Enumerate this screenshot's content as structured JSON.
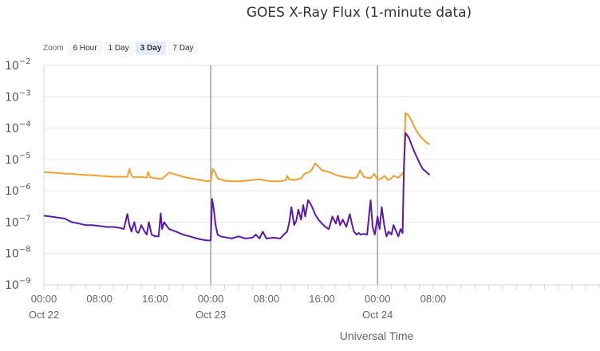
{
  "title": "GOES X-Ray Flux (1-minute data)",
  "zoom": {
    "label": "Zoom",
    "buttons": [
      {
        "label": "6 Hour",
        "active": false
      },
      {
        "label": "1 Day",
        "active": false
      },
      {
        "label": "3 Day",
        "active": true
      },
      {
        "label": "7 Day",
        "active": false
      }
    ]
  },
  "colors": {
    "long_channel": "#f0a030",
    "short_channel": "#5b1aa6",
    "grid": "#e6e6e6",
    "day_divider": "#a0a0a0",
    "axis": "#ccd6eb"
  },
  "chart_data": {
    "type": "line",
    "title": "GOES X-Ray Flux (1-minute data)",
    "xlabel": "Universal Time",
    "ylabel": "",
    "x_unit": "hours since Oct 22 00:00 UTC",
    "xlim": [
      0,
      80
    ],
    "ylim": [
      1e-09,
      0.01
    ],
    "y_scale": "log",
    "y_ticks": [
      {
        "value": 0.01,
        "base": "10",
        "exp": "−2"
      },
      {
        "value": 0.001,
        "base": "10",
        "exp": "−3"
      },
      {
        "value": 0.0001,
        "base": "10",
        "exp": "−4"
      },
      {
        "value": 1e-05,
        "base": "10",
        "exp": "−5"
      },
      {
        "value": 1e-06,
        "base": "10",
        "exp": "−6"
      },
      {
        "value": 1e-07,
        "base": "10",
        "exp": "−7"
      },
      {
        "value": 1e-08,
        "base": "10",
        "exp": "−8"
      },
      {
        "value": 1e-09,
        "base": "10",
        "exp": "−9"
      }
    ],
    "x_ticks": [
      {
        "value": 0,
        "label": "00:00",
        "sublabel": "Oct 22"
      },
      {
        "value": 8,
        "label": "08:00",
        "sublabel": ""
      },
      {
        "value": 16,
        "label": "16:00",
        "sublabel": ""
      },
      {
        "value": 24,
        "label": "00:00",
        "sublabel": "Oct 23"
      },
      {
        "value": 32,
        "label": "08:00",
        "sublabel": ""
      },
      {
        "value": 40,
        "label": "16:00",
        "sublabel": ""
      },
      {
        "value": 48,
        "label": "00:00",
        "sublabel": "Oct 24"
      },
      {
        "value": 56,
        "label": "08:00",
        "sublabel": ""
      }
    ],
    "day_dividers": [
      24,
      48
    ],
    "grid": true,
    "series": [
      {
        "name": "",
        "color": "#f0a030",
        "x": [
          0,
          1,
          2,
          3,
          4,
          5,
          6,
          7,
          8,
          9,
          10,
          11,
          12,
          12.3,
          12.6,
          13,
          14,
          14.8,
          15,
          15.3,
          16,
          17,
          18,
          19,
          20,
          21,
          22,
          23,
          23.5,
          24,
          24.3,
          24.6,
          25,
          26,
          27,
          28,
          29,
          30,
          31,
          32,
          33,
          34,
          34.8,
          35,
          35.3,
          36,
          37,
          37.5,
          38,
          38.5,
          39,
          39.5,
          40,
          41,
          42,
          42.5,
          43,
          44,
          44.5,
          45,
          45.5,
          46,
          46.5,
          47,
          47.5,
          48,
          48.5,
          49,
          49.5,
          50,
          50.3,
          51,
          51.5,
          51.8,
          52,
          52.5,
          53,
          53.5,
          54,
          54.5,
          55,
          55.5
        ],
        "y": [
          4e-06,
          3.8e-06,
          3.7e-06,
          3.5e-06,
          3.5e-06,
          3.3e-06,
          3.2e-06,
          3.1e-06,
          3e-06,
          2.9e-06,
          2.8e-06,
          2.8e-06,
          2.8e-06,
          5e-06,
          3e-06,
          2.7e-06,
          2.8e-06,
          2.6e-06,
          4e-06,
          2.7e-06,
          2.5e-06,
          2.4e-06,
          3.8e-06,
          3.3e-06,
          2.8e-06,
          2.5e-06,
          2.3e-06,
          2.1e-06,
          2e-06,
          2.1e-06,
          5e-06,
          4e-06,
          2.5e-06,
          2.1e-06,
          2e-06,
          2e-06,
          2.1e-06,
          2.2e-06,
          2.3e-06,
          2.1e-06,
          2e-06,
          2e-06,
          2.2e-06,
          3e-06,
          2.3e-06,
          2.2e-06,
          2.5e-06,
          3.5e-06,
          3.8e-06,
          4.5e-06,
          7.5e-06,
          6e-06,
          4.5e-06,
          4e-06,
          3.2e-06,
          3e-06,
          2.8e-06,
          2.6e-06,
          2.5e-06,
          2.7e-06,
          4.5e-06,
          2.8e-06,
          2.6e-06,
          2.5e-06,
          3.5e-06,
          2.3e-06,
          2.4e-06,
          3e-06,
          2.2e-06,
          2.5e-06,
          3e-06,
          2.6e-06,
          3.5e-06,
          4e-06,
          0.0003,
          0.00025,
          0.00015,
          9e-05,
          6e-05,
          4.5e-05,
          3.5e-05,
          3e-05
        ]
      },
      {
        "name": "",
        "color": "#5b1aa6",
        "x": [
          0,
          1,
          2,
          3,
          4,
          5,
          6,
          7,
          8,
          9,
          10,
          11,
          11.5,
          12,
          12.3,
          12.6,
          13,
          13.3,
          13.6,
          14,
          14.5,
          14.8,
          15.1,
          15.5,
          16,
          16.5,
          16.8,
          17,
          17.3,
          18,
          19,
          20,
          21,
          22,
          23,
          23.5,
          24,
          24.2,
          24.4,
          24.7,
          25,
          25.4,
          26,
          27,
          28,
          29,
          30,
          30.5,
          31,
          31.5,
          32,
          33,
          34,
          34.5,
          35,
          35.3,
          35.6,
          36,
          36.3,
          36.6,
          37,
          37.3,
          37.6,
          38,
          38.3,
          38.6,
          39,
          39.5,
          40,
          40.5,
          41,
          41.5,
          42,
          42.3,
          42.6,
          43,
          43.5,
          44,
          44.3,
          44.6,
          45,
          45.3,
          45.6,
          46,
          46.5,
          47,
          47.3,
          47.6,
          48,
          48.3,
          48.6,
          49,
          49.3,
          49.6,
          50,
          50.3,
          51,
          51.3,
          51.6,
          51.8,
          52,
          52.5,
          53,
          53.5,
          54,
          54.5,
          55,
          55.5
        ],
        "y": [
          1.6e-07,
          1.5e-07,
          1.4e-07,
          1.3e-07,
          1e-07,
          9e-08,
          8e-08,
          8e-08,
          7.5e-08,
          7e-08,
          7e-08,
          6.5e-08,
          6e-08,
          1.8e-07,
          8e-08,
          5e-08,
          1e-07,
          5e-08,
          4.5e-08,
          8e-08,
          5e-08,
          4e-08,
          1e-07,
          4e-08,
          3.5e-08,
          3.5e-08,
          1.9e-07,
          6e-08,
          1e-07,
          6e-08,
          5e-08,
          4e-08,
          3.5e-08,
          3e-08,
          2.7e-08,
          2.6e-08,
          2.6e-08,
          5.5e-07,
          3e-07,
          8e-08,
          4e-08,
          3.5e-08,
          3.3e-08,
          3e-08,
          3.5e-08,
          3e-08,
          3.2e-08,
          4e-08,
          3e-08,
          5e-08,
          3e-08,
          3.2e-08,
          3e-08,
          4e-08,
          5e-08,
          1e-07,
          3e-07,
          8e-08,
          1.1e-07,
          2.5e-07,
          1.2e-07,
          3.5e-07,
          1.5e-07,
          5e-07,
          4e-07,
          3e-07,
          1.8e-07,
          1.2e-07,
          9e-08,
          7e-08,
          6e-08,
          1.5e-07,
          9e-08,
          1.6e-07,
          8e-08,
          1.2e-07,
          7e-08,
          1.8e-07,
          9e-08,
          5e-08,
          4e-08,
          4.5e-08,
          4e-08,
          4.2e-08,
          4e-08,
          5e-07,
          7e-08,
          4e-08,
          1.5e-07,
          6e-08,
          3e-07,
          7e-08,
          3.5e-08,
          5e-08,
          4e-08,
          8e-08,
          3.5e-08,
          6e-08,
          4.5e-08,
          6.5e-06,
          7e-05,
          5e-05,
          2.5e-05,
          1.4e-05,
          8e-06,
          5e-06,
          4e-06,
          3.2e-06
        ]
      }
    ]
  }
}
